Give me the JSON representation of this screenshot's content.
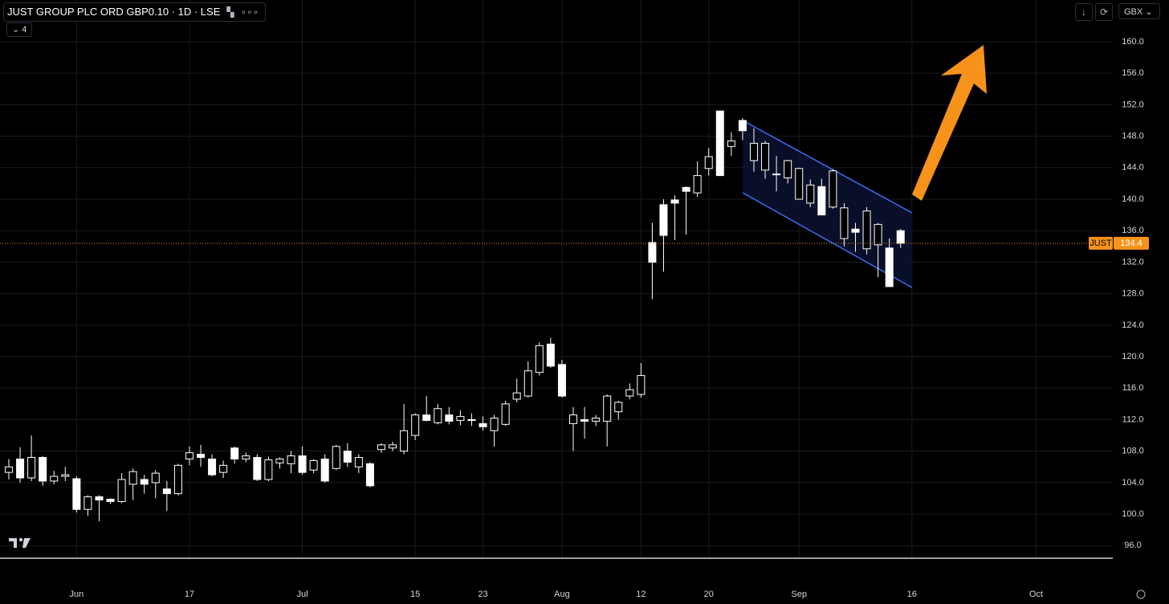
{
  "chart_data": {
    "type": "candlestick",
    "title": "JUST GROUP PLC ORD GBP0.10 · 1D · LSE",
    "indicator_count": "4",
    "currency": "GBX",
    "symbol_tag": "JUST",
    "last_price": 134.4,
    "color_up": "#000000",
    "color_down": "#ffffff",
    "price_line_color": "#f7931a",
    "grid": true,
    "categories": [
      null,
      null,
      null,
      null,
      null,
      null,
      "Jun",
      null,
      null,
      null,
      null,
      null,
      null,
      null,
      null,
      null,
      "17",
      null,
      null,
      null,
      null,
      null,
      null,
      null,
      null,
      null,
      "Jul",
      null,
      null,
      null,
      null,
      null,
      null,
      null,
      null,
      null,
      "15",
      null,
      null,
      null,
      null,
      null,
      "23",
      null,
      null,
      null,
      null,
      null,
      null,
      "Aug",
      null,
      null,
      null,
      null,
      null,
      null,
      "12",
      null,
      null,
      null,
      null,
      null,
      "20",
      null,
      null,
      null,
      null,
      null,
      null,
      null,
      "Sep",
      null,
      null,
      null,
      null,
      null,
      null,
      null,
      null,
      null,
      "16",
      null,
      null,
      null,
      null,
      null,
      null,
      null,
      null,
      null,
      null,
      "Oct",
      null,
      null,
      null,
      null,
      null,
      null,
      null,
      null,
      null,
      null
    ],
    "open": [
      105.3,
      107.0,
      104.6,
      107.2,
      104.2,
      104.8,
      104.5,
      100.6,
      102.2,
      101.9,
      101.6,
      103.8,
      104.4,
      104.0,
      103.2,
      102.6,
      107.0,
      107.6,
      107.0,
      105.3,
      108.4,
      107.0,
      107.2,
      104.4,
      106.5,
      106.4,
      107.4,
      105.6,
      107.0,
      105.8,
      108.0,
      106.0,
      106.4,
      108.2,
      108.4,
      108.0,
      110.0,
      112.6,
      111.6,
      112.6,
      111.9,
      112.0,
      111.5,
      110.6,
      111.4,
      114.6,
      115.0,
      118.0,
      121.6,
      119.0,
      111.5,
      112.0,
      111.8,
      111.8,
      113.0,
      115.0,
      115.2,
      134.5,
      139.3,
      139.9,
      141.5,
      140.8,
      143.9,
      151.2,
      146.7,
      150.0,
      144.9,
      143.7,
      143.2,
      142.7,
      140.0,
      139.5,
      141.6,
      139.0,
      135.0,
      136.2,
      133.7,
      134.2,
      133.8,
      136.0,
      null,
      null,
      null,
      null,
      null,
      null,
      null,
      null,
      null,
      null,
      null,
      null,
      null,
      null,
      null,
      null,
      null,
      null,
      null,
      null,
      null,
      null
    ],
    "high": [
      107.0,
      108.5,
      110.0,
      107.4,
      105.5,
      106.0,
      104.8,
      102.4,
      102.4,
      102.0,
      105.2,
      105.8,
      105.0,
      105.6,
      104.2,
      106.4,
      108.6,
      108.8,
      107.6,
      106.8,
      108.6,
      107.8,
      107.6,
      107.3,
      107.2,
      108.0,
      108.6,
      107.0,
      107.6,
      108.8,
      109.0,
      107.6,
      106.6,
      109.0,
      109.2,
      114.0,
      112.8,
      115.0,
      114.0,
      113.6,
      113.2,
      112.8,
      112.4,
      112.6,
      114.4,
      117.2,
      119.4,
      121.8,
      122.4,
      119.6,
      113.6,
      113.6,
      112.6,
      115.2,
      114.4,
      116.6,
      119.2,
      137.0,
      140.0,
      140.5,
      141.6,
      144.8,
      146.5,
      151.2,
      148.5,
      150.3,
      149.0,
      147.4,
      145.5,
      145.0,
      144.0,
      142.5,
      142.6,
      143.8,
      139.5,
      137.0,
      139.0,
      137.0,
      135.0,
      136.2,
      null,
      null,
      null,
      null,
      null,
      null,
      null,
      null,
      null,
      null,
      null,
      null,
      null,
      null,
      null,
      null,
      null,
      null,
      null,
      null,
      null,
      null
    ],
    "low": [
      104.4,
      104.0,
      104.2,
      103.6,
      103.8,
      104.2,
      100.2,
      99.8,
      99.1,
      101.3,
      101.4,
      101.8,
      102.6,
      102.0,
      100.4,
      102.4,
      106.2,
      106.0,
      104.8,
      104.6,
      106.4,
      106.6,
      104.2,
      104.2,
      105.8,
      105.2,
      105.0,
      105.2,
      104.0,
      105.6,
      106.0,
      105.2,
      103.4,
      107.8,
      108.0,
      107.6,
      109.4,
      111.8,
      111.4,
      111.4,
      111.3,
      111.2,
      110.6,
      108.6,
      111.2,
      114.2,
      114.8,
      117.6,
      118.6,
      114.8,
      108.0,
      109.6,
      111.2,
      108.6,
      112.0,
      114.6,
      114.8,
      127.3,
      130.8,
      134.8,
      135.5,
      140.3,
      143.0,
      143.0,
      145.5,
      147.5,
      143.5,
      142.6,
      141.0,
      142.0,
      140.0,
      139.0,
      138.0,
      138.8,
      134.0,
      133.3,
      133.0,
      130.1,
      128.9,
      133.8,
      null,
      null,
      null,
      null,
      null,
      null,
      null,
      null,
      null,
      null,
      null,
      null,
      null,
      null,
      null,
      null,
      null,
      null,
      null,
      null,
      null,
      null
    ],
    "close": [
      106.0,
      104.6,
      107.2,
      104.2,
      104.8,
      105.0,
      100.6,
      102.2,
      101.8,
      101.6,
      104.4,
      105.4,
      103.8,
      105.2,
      102.6,
      106.2,
      107.8,
      107.2,
      105.0,
      106.2,
      107.0,
      107.4,
      104.4,
      106.9,
      107.0,
      107.4,
      105.3,
      106.8,
      104.2,
      108.6,
      106.6,
      107.2,
      103.6,
      108.8,
      108.8,
      110.6,
      112.6,
      111.9,
      113.4,
      111.8,
      112.4,
      111.9,
      111.1,
      112.2,
      114.0,
      115.4,
      118.2,
      121.4,
      118.8,
      115.0,
      112.6,
      111.8,
      112.2,
      115.0,
      114.2,
      115.8,
      117.6,
      132.0,
      135.4,
      139.5,
      141.0,
      143.0,
      145.4,
      143.0,
      147.4,
      148.7,
      147.1,
      147.1,
      143.1,
      144.9,
      143.9,
      141.8,
      138.0,
      143.6,
      138.9,
      135.8,
      138.5,
      136.8,
      128.9,
      134.4,
      null,
      null,
      null,
      null,
      null,
      null,
      null,
      null,
      null,
      null,
      null,
      null,
      null,
      null,
      null,
      null,
      null,
      null,
      null,
      null,
      null,
      null
    ],
    "ylim": [
      94.4,
      165.3
    ],
    "yticks": [
      {
        "value": 96,
        "label": "96.0"
      },
      {
        "value": 100,
        "label": "100.0"
      },
      {
        "value": 104,
        "label": "104.0"
      },
      {
        "value": 108,
        "label": "108.0"
      },
      {
        "value": 112,
        "label": "112.0"
      },
      {
        "value": 116,
        "label": "116.0"
      },
      {
        "value": 120,
        "label": "120.0"
      },
      {
        "value": 124,
        "label": "124.0"
      },
      {
        "value": 128,
        "label": "128.0"
      },
      {
        "value": 132,
        "label": "132.0"
      },
      {
        "value": 136,
        "label": "136.0"
      },
      {
        "value": 140,
        "label": "140.0"
      },
      {
        "value": 144,
        "label": "144.0"
      },
      {
        "value": 148,
        "label": "148.0"
      },
      {
        "value": 152,
        "label": "152.0"
      },
      {
        "value": 156,
        "label": "156.0"
      },
      {
        "value": 160,
        "label": "160.0"
      }
    ]
  }
}
